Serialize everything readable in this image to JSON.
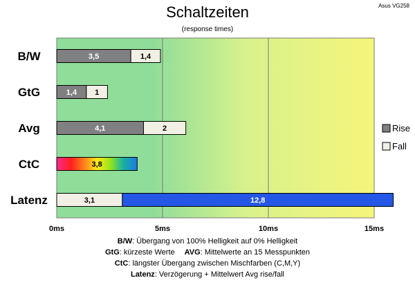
{
  "header": {
    "title": "Schaltzeiten",
    "subtitle": "(response times)",
    "brand": "Asus VG258"
  },
  "chart_data": {
    "type": "bar",
    "orientation": "horizontal",
    "stacked": true,
    "categories": [
      "B/W",
      "GtG",
      "Avg",
      "CtC",
      "Latenz"
    ],
    "series": [
      {
        "name": "Rise",
        "values": [
          3.5,
          1.4,
          4.1,
          null,
          null
        ],
        "labels": [
          "3,5",
          "1,4",
          "4,1",
          "",
          ""
        ]
      },
      {
        "name": "Fall",
        "values": [
          1.4,
          1,
          2,
          null,
          3.1
        ],
        "labels": [
          "1,4",
          "1",
          "2",
          "",
          "3,1"
        ]
      },
      {
        "name": "",
        "values": [
          null,
          null,
          null,
          3.8,
          null
        ],
        "labels": [
          "",
          "",
          "",
          "3,8",
          ""
        ]
      },
      {
        "name": "",
        "values": [
          null,
          null,
          null,
          null,
          12.8
        ],
        "labels": [
          "",
          "",
          "",
          "",
          "12,8"
        ]
      }
    ],
    "xlim": [
      0,
      15
    ],
    "xticks": [
      0,
      5,
      10,
      15
    ],
    "xtick_labels": [
      "0ms",
      "5ms",
      "10ms",
      "15ms"
    ],
    "grid": true,
    "legend": {
      "placement": "right",
      "entries": [
        "Rise",
        "Fall"
      ]
    },
    "colors": {
      "rise": "#808080",
      "fall": "#f2efe4",
      "latenz": "#2457e6",
      "border": "#000000",
      "background_start": "#8fdd99",
      "background_mid": "#d8f28c",
      "background_end": "#f5f57a"
    }
  },
  "legend_note": {
    "line1": {
      "key": "B/W",
      "text": ":  Übergang von 100% Helligkeit auf 0% Helligkeit"
    },
    "line2": {
      "key1": "GtG",
      "text1": ": kürzeste  Werte",
      "key2": "AVG",
      "text2": ": Mittelwerte  an 15 Messpunkten"
    },
    "line3": {
      "key": "CtC",
      "text": ": längster Übergang  zwischen Mischfarben (C,M,Y)"
    },
    "line4": {
      "key": "Latenz",
      "text": ": Verzögerung  + Mittelwert Avg rise/fall"
    }
  }
}
